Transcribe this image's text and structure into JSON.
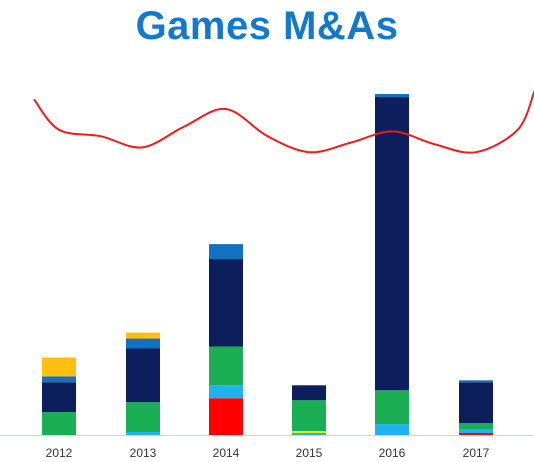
{
  "title": "Games M&As",
  "colors": {
    "title": "#1579c9",
    "axis": "#c8d8e8",
    "line": "#ee1c1c"
  },
  "chart_data": {
    "type": "bar",
    "stacked": true,
    "title": "Games M&As",
    "categories": [
      "2012",
      "2013",
      "2014",
      "2015",
      "2016",
      "2017"
    ],
    "ylim": [
      0,
      345
    ],
    "series": [
      {
        "color": "#ff0000",
        "values": [
          0,
          0,
          37,
          0,
          0,
          2
        ]
      },
      {
        "color": "#1fb2f0",
        "values": [
          0,
          3,
          13,
          2,
          11,
          4
        ]
      },
      {
        "color": "#e8e800",
        "values": [
          0,
          0,
          0,
          2,
          0,
          0
        ]
      },
      {
        "color": "#1aaf54",
        "values": [
          23,
          30,
          39,
          31,
          34,
          6
        ]
      },
      {
        "color": "#0c1f5c",
        "values": [
          30,
          54,
          88,
          15,
          295,
          41
        ]
      },
      {
        "color": "#1470c0",
        "values": [
          6,
          10,
          15,
          0,
          3,
          2
        ]
      },
      {
        "color": "#fdc010",
        "values": [
          19,
          6,
          0,
          0,
          0,
          0
        ]
      }
    ],
    "overlay_line": {
      "color": "#ee1c1c",
      "x": [
        2011.7,
        2012,
        2012.5,
        2013,
        2013.5,
        2014,
        2014.5,
        2015,
        2015.5,
        2016,
        2016.5,
        2017,
        2017.5,
        2017.7
      ],
      "y": [
        0.91,
        0.72,
        0.68,
        0.61,
        0.74,
        0.85,
        0.68,
        0.58,
        0.64,
        0.71,
        0.63,
        0.58,
        0.72,
        0.96
      ]
    }
  }
}
